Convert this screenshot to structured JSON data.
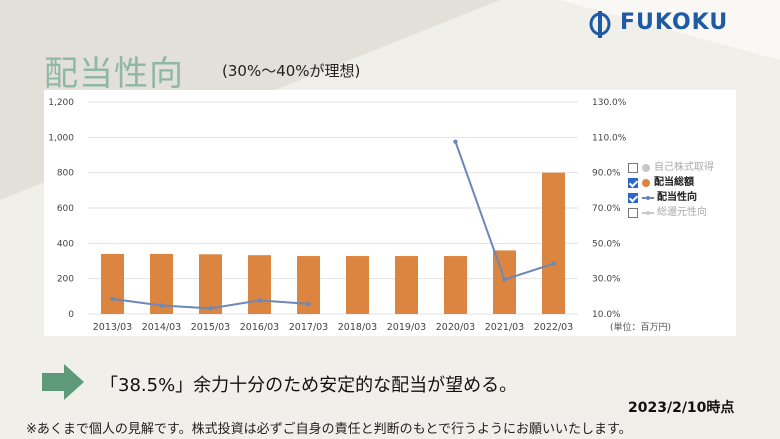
{
  "page": {
    "title": "配当性向",
    "subtitle": "(30%〜40%が理想)",
    "logo_text": "FUKOKU",
    "message": "「38.5%」余力十分のため安定的な配当が望める。",
    "date_label": "2023/2/10時点",
    "disclaimer": "※あくまで個人の見解です。株式投資は必ずご自身の責任と判断のもとで行うようにお願いいたします。",
    "unit_label": "(単位：百万円)"
  },
  "colors": {
    "background": "#f1efe9",
    "title": "#8fb8a2",
    "bar": "#db8541",
    "line": "#6b88b8",
    "logo": "#1f5aa6",
    "arrow": "#5e9a7a"
  },
  "legend": [
    {
      "label": "自己株式取得",
      "checked": false,
      "marker": "dot",
      "color": "#c8c8c8",
      "muted": true
    },
    {
      "label": "配当総額",
      "checked": true,
      "marker": "dot",
      "color": "#db8541",
      "muted": false
    },
    {
      "label": "配当性向",
      "checked": true,
      "marker": "line",
      "color": "#6b88b8",
      "muted": false
    },
    {
      "label": "総還元性向",
      "checked": false,
      "marker": "line",
      "color": "#c8c8c8",
      "muted": true
    }
  ],
  "chart_data": {
    "type": "bar",
    "title": "",
    "categories": [
      "2013/03",
      "2014/03",
      "2015/03",
      "2016/03",
      "2017/03",
      "2018/03",
      "2019/03",
      "2020/03",
      "2021/03",
      "2022/03"
    ],
    "series": [
      {
        "name": "配当総額",
        "type": "bar",
        "axis": "left",
        "values": [
          340,
          340,
          338,
          333,
          328,
          328,
          328,
          328,
          360,
          800
        ]
      },
      {
        "name": "配当性向",
        "type": "line",
        "axis": "right",
        "values": [
          18.5,
          14.8,
          13.2,
          17.7,
          15.7,
          null,
          null,
          107.5,
          29.5,
          38.5
        ]
      }
    ],
    "y_left": {
      "min": 0,
      "max": 1200,
      "ticks": [
        "0",
        "200",
        "400",
        "600",
        "800",
        "1,000",
        "1,200"
      ]
    },
    "y_right": {
      "min": 10,
      "max": 130,
      "ticks": [
        "10.0%",
        "30.0%",
        "50.0%",
        "70.0%",
        "90.0%",
        "110.0%",
        "130.0%"
      ]
    },
    "grid": true,
    "legend_position": "right"
  }
}
